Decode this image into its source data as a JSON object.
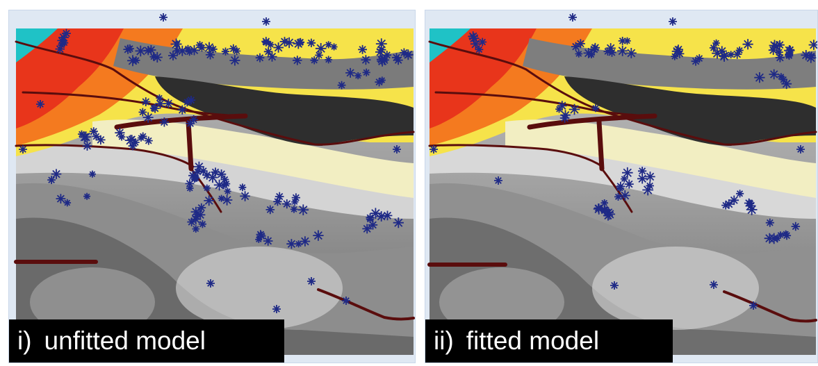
{
  "panels": [
    {
      "caption_number": "i)",
      "caption_text": "unfitted model"
    },
    {
      "caption_number": "ii)",
      "caption_text": "fitted model"
    }
  ],
  "colors": {
    "frame": "#dfe8f3",
    "cyan": "#1fc2c6",
    "red": "#e8351b",
    "orange": "#f47a1f",
    "yellow": "#f6e34a",
    "pale_yellow": "#f2eec2",
    "dark_band": "#2e2e2e",
    "fault": "#5a0d0d",
    "marker": "#1f2a86"
  },
  "icons": [
    "asterisk-marker-icon"
  ]
}
